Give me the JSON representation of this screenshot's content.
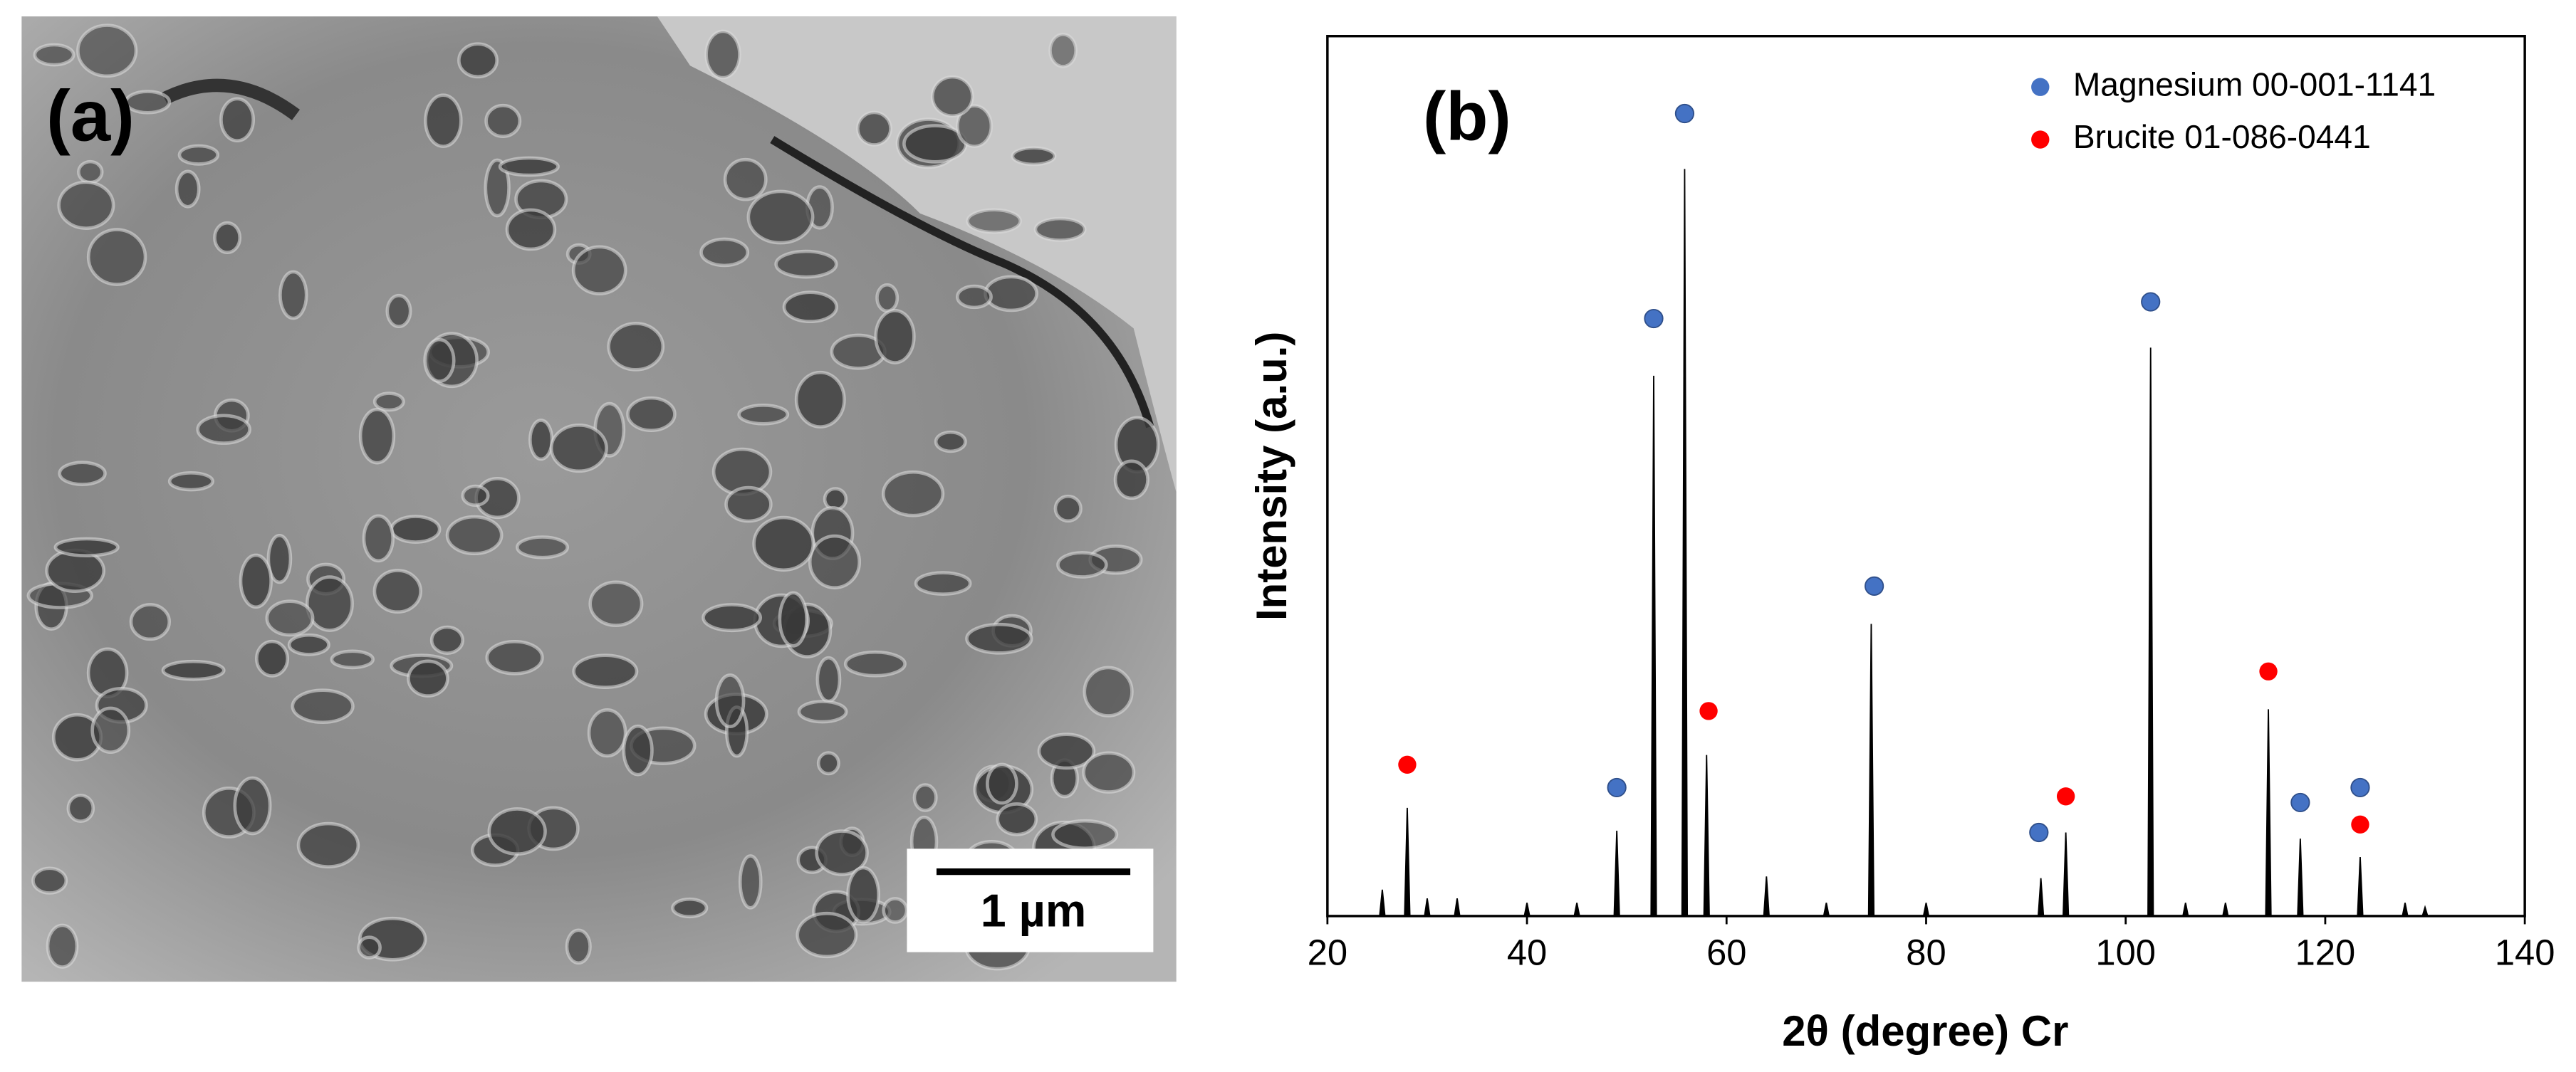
{
  "image_panel": {
    "label": "(a)",
    "scale_bar": "1 µm"
  },
  "chart_data": {
    "type": "stem",
    "panel_label": "(b)",
    "x_label": "2θ (degree) Cr",
    "y_label": "Intensity (a.u.)",
    "x": [
      25.5,
      28,
      30,
      33,
      40,
      45,
      49,
      52.7,
      55.8,
      58,
      64,
      70,
      74.5,
      80,
      91.5,
      94,
      102.5,
      106,
      110,
      114.3,
      117.5,
      123.5,
      128,
      130
    ],
    "values": [
      3,
      12.3,
      2,
      2,
      1.5,
      1.5,
      9.7,
      61.4,
      84.9,
      18.3,
      4.5,
      1.5,
      33.2,
      1.5,
      4.3,
      9.5,
      64.6,
      1.5,
      1.5,
      23.5,
      8.8,
      6.7,
      1.5,
      1
    ],
    "color": "#000000",
    "markers": [
      {
        "name": "Magnesium 00-001-1141",
        "color": "#4472c4",
        "x": [
          49,
          52.7,
          55.8,
          74.8,
          91.3,
          102.5,
          117.5,
          123.5
        ],
        "values": [
          14.6,
          67.9,
          91.2,
          37.5,
          9.5,
          69.8,
          12.9,
          14.6
        ]
      },
      {
        "name": "Brucite 01-086-0441",
        "color": "#ff0000",
        "x": [
          28,
          58.2,
          94,
          114.3,
          123.5
        ],
        "values": [
          17.2,
          23.3,
          13.6,
          27.8,
          10.4
        ]
      }
    ],
    "xlim": [
      20,
      140
    ],
    "xticks": [
      20,
      40,
      60,
      80,
      100,
      120,
      140
    ],
    "ylim": [
      0,
      100
    ],
    "legend": "upper right"
  }
}
